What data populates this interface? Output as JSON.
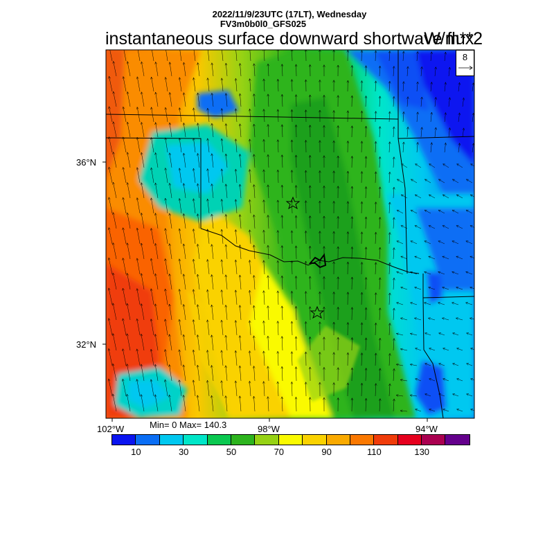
{
  "header": {
    "line1": "2022/11/9/23UTC (17LT), Wednesday",
    "line2": "FV3m0b0l0_GFS025",
    "field_title": "instantaneous surface downward shortwave flux",
    "units": "W/m**2"
  },
  "reference_vector": {
    "value": "8"
  },
  "stats": {
    "text": "Min= 0 Max= 140.3"
  },
  "axes": {
    "lat_labels": [
      "36°N",
      "32°N"
    ],
    "lon_labels": [
      "102°W",
      "98°W",
      "94°W"
    ]
  },
  "colorbar": {
    "colors": [
      "#0a14f0",
      "#0a6ef5",
      "#00c8f0",
      "#00e6c8",
      "#0ac850",
      "#2db41e",
      "#96d214",
      "#fafa00",
      "#fad200",
      "#faaa00",
      "#fa7800",
      "#f03c0a",
      "#e6001e",
      "#aa0050",
      "#64008c"
    ],
    "labels": [
      "10",
      "30",
      "50",
      "70",
      "90",
      "110",
      "130"
    ]
  },
  "markers": [
    "station-star-north",
    "station-star-south"
  ],
  "icon_names": [
    "star-icon",
    "wind-arrow-icon"
  ]
}
